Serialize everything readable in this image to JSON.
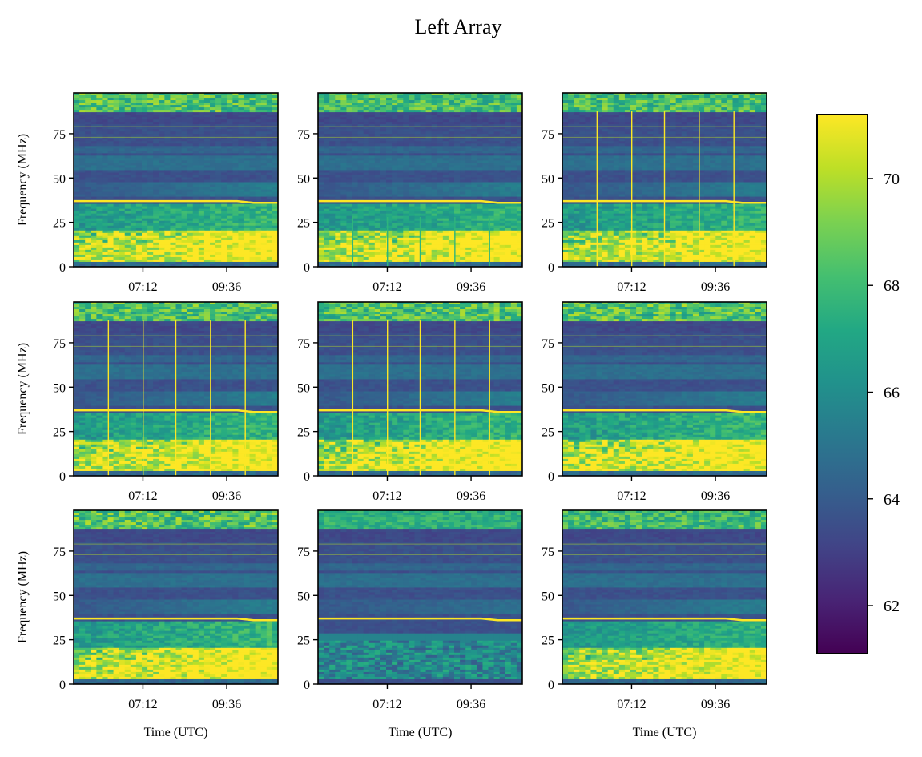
{
  "chart_data": {
    "type": "heatmap",
    "title": "Left Array",
    "layout": {
      "rows": 3,
      "cols": 3
    },
    "xlabel": "Time (UTC)",
    "ylabel": "Frequency (MHz)",
    "x_range_minutes_utc": [
      313,
      664
    ],
    "x_ticks": [
      {
        "label": "07:12",
        "minutes": 432
      },
      {
        "label": "09:36",
        "minutes": 576
      }
    ],
    "ylim": [
      0,
      98
    ],
    "y_ticks": [
      0,
      25,
      50,
      75
    ],
    "colorbar": {
      "colormap": "viridis",
      "range": [
        61.1,
        71.2
      ],
      "ticks": [
        62,
        64,
        66,
        68,
        70
      ],
      "tick_labels": [
        "62",
        "64",
        "66",
        "68",
        "70"
      ]
    },
    "panels": [
      {
        "id": "r1c1",
        "row": 0,
        "col": 0,
        "vertical_spikes": false,
        "spike_fracs": [],
        "spike_full_height": false,
        "strength": 1.0,
        "quiet": false
      },
      {
        "id": "r1c2",
        "row": 0,
        "col": 1,
        "vertical_spikes": true,
        "spike_fracs": [
          0.17,
          0.34,
          0.5,
          0.67,
          0.84
        ],
        "spike_full_height": false,
        "strength": 0.95,
        "quiet": false
      },
      {
        "id": "r1c3",
        "row": 0,
        "col": 2,
        "vertical_spikes": true,
        "spike_fracs": [
          0.17,
          0.34,
          0.5,
          0.67,
          0.84
        ],
        "spike_full_height": true,
        "strength": 0.95,
        "quiet": false
      },
      {
        "id": "r2c1",
        "row": 1,
        "col": 0,
        "vertical_spikes": true,
        "spike_fracs": [
          0.17,
          0.34,
          0.5,
          0.67,
          0.84
        ],
        "spike_full_height": true,
        "strength": 1.0,
        "quiet": false
      },
      {
        "id": "r2c2",
        "row": 1,
        "col": 1,
        "vertical_spikes": true,
        "spike_fracs": [
          0.17,
          0.34,
          0.5,
          0.67,
          0.84
        ],
        "spike_full_height": true,
        "strength": 1.0,
        "quiet": false
      },
      {
        "id": "r2c3",
        "row": 1,
        "col": 2,
        "vertical_spikes": false,
        "spike_fracs": [],
        "spike_full_height": false,
        "strength": 1.05,
        "quiet": false
      },
      {
        "id": "r3c1",
        "row": 2,
        "col": 0,
        "vertical_spikes": false,
        "spike_fracs": [],
        "spike_full_height": false,
        "strength": 1.05,
        "quiet": false
      },
      {
        "id": "r3c2",
        "row": 2,
        "col": 1,
        "vertical_spikes": false,
        "spike_fracs": [],
        "spike_full_height": false,
        "strength": 0.55,
        "quiet": true
      },
      {
        "id": "r3c3",
        "row": 2,
        "col": 2,
        "vertical_spikes": false,
        "spike_fracs": [],
        "spike_full_height": false,
        "strength": 0.85,
        "quiet": false
      }
    ],
    "features": {
      "narrowband_line_mhz": 37,
      "narrowband_line_late_mhz": 36,
      "fm_band_mhz": [
        87,
        98
      ],
      "strong_low_band_mhz": [
        3,
        20
      ],
      "faint_lines_mhz": [
        73,
        79
      ]
    }
  }
}
